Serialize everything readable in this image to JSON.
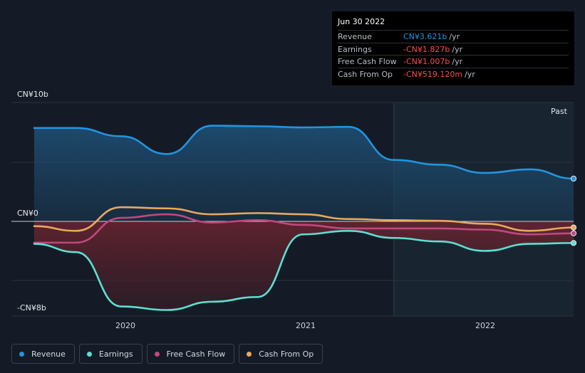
{
  "tooltip": {
    "date": "Jun 30 2022",
    "rows": [
      {
        "label": "Revenue",
        "value": "CN¥3.621b",
        "unit": "/yr",
        "color": "#2394df"
      },
      {
        "label": "Earnings",
        "value": "-CN¥1.827b",
        "unit": "/yr",
        "color": "#ff4b4b"
      },
      {
        "label": "Free Cash Flow",
        "value": "-CN¥1.007b",
        "unit": "/yr",
        "color": "#ff4b4b"
      },
      {
        "label": "Cash From Op",
        "value": "-CN¥519.120m",
        "unit": "/yr",
        "color": "#ff4b4b"
      }
    ]
  },
  "legend": [
    {
      "label": "Revenue",
      "color": "#2394df"
    },
    {
      "label": "Earnings",
      "color": "#5ce0d2"
    },
    {
      "label": "Free Cash Flow",
      "color": "#c0487f"
    },
    {
      "label": "Cash From Op",
      "color": "#e8a95f"
    }
  ],
  "chart_data": {
    "type": "line",
    "y_tick_labels": [
      "CN¥10b",
      "CN¥0",
      "-CN¥8b"
    ],
    "x_tick_labels": [
      "2020",
      "2021",
      "2022"
    ],
    "past_label": "Past",
    "ylim": [
      -8,
      10
    ],
    "xlim": [
      2019.52,
      2022.49
    ],
    "past_start": 2021.5,
    "series": [
      {
        "name": "Revenue",
        "color": "#2394df",
        "x": [
          2019.52,
          2019.75,
          2020.0,
          2020.25,
          2020.5,
          2020.75,
          2021.0,
          2021.25,
          2021.5,
          2021.75,
          2022.0,
          2022.25,
          2022.49
        ],
        "y": [
          7.9,
          7.9,
          7.2,
          5.7,
          8.1,
          8.05,
          7.95,
          8.0,
          5.2,
          4.8,
          4.1,
          4.4,
          3.62
        ]
      },
      {
        "name": "Earnings",
        "color": "#5ce0d2",
        "x": [
          2019.52,
          2019.75,
          2020.0,
          2020.25,
          2020.5,
          2020.75,
          2021.0,
          2021.25,
          2021.5,
          2021.75,
          2022.0,
          2022.25,
          2022.49
        ],
        "y": [
          -1.9,
          -2.6,
          -7.2,
          -7.5,
          -6.8,
          -6.4,
          -1.1,
          -0.8,
          -1.4,
          -1.7,
          -2.5,
          -1.9,
          -1.83
        ]
      },
      {
        "name": "Free Cash Flow",
        "color": "#c0487f",
        "x": [
          2019.52,
          2019.75,
          2020.0,
          2020.25,
          2020.5,
          2020.75,
          2021.0,
          2021.25,
          2021.5,
          2021.75,
          2022.0,
          2022.25,
          2022.49
        ],
        "y": [
          -1.8,
          -1.8,
          0.3,
          0.6,
          -0.1,
          0.1,
          -0.3,
          -0.6,
          -0.6,
          -0.6,
          -0.7,
          -1.1,
          -1.01
        ]
      },
      {
        "name": "Cash From Op",
        "color": "#e8a95f",
        "x": [
          2019.52,
          2019.75,
          2020.0,
          2020.25,
          2020.5,
          2020.75,
          2021.0,
          2021.25,
          2021.5,
          2021.75,
          2022.0,
          2022.25,
          2022.49
        ],
        "y": [
          -0.4,
          -0.8,
          1.2,
          1.1,
          0.6,
          0.7,
          0.6,
          0.2,
          0.1,
          0.05,
          -0.2,
          -0.8,
          -0.52
        ]
      }
    ]
  }
}
